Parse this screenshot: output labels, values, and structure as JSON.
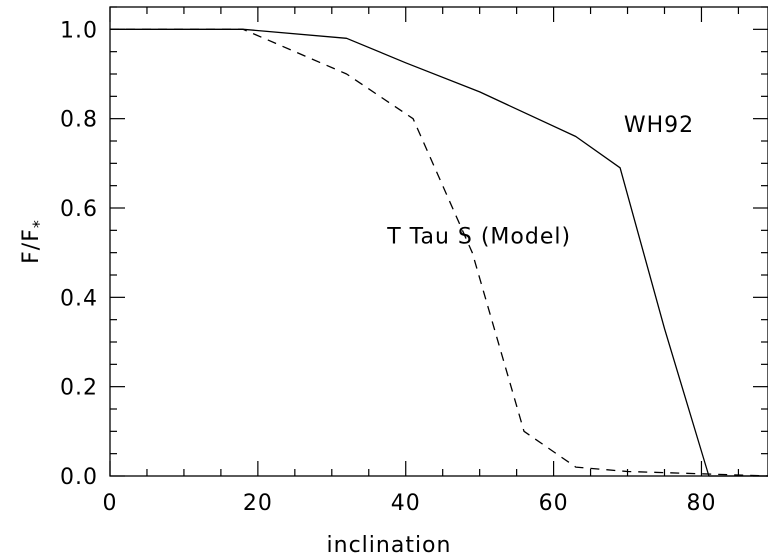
{
  "chart_data": {
    "type": "line",
    "xlabel": "inclination",
    "ylabel": "F/F",
    "ylabel_subscript": "*",
    "xlim": [
      0,
      89
    ],
    "ylim": [
      0,
      1.05
    ],
    "x_ticks": [
      0,
      20,
      40,
      60,
      80
    ],
    "x_tick_labels": [
      "0",
      "20",
      "40",
      "60",
      "80"
    ],
    "y_ticks": [
      0.0,
      0.2,
      0.4,
      0.6,
      0.8,
      1.0
    ],
    "y_tick_labels": [
      "0.0",
      "0.2",
      "0.4",
      "0.6",
      "0.8",
      "1.0"
    ],
    "x_minor_step": 5,
    "y_minor_step": 0.05,
    "grid": false,
    "series": [
      {
        "name": "WH92",
        "style": "solid",
        "color": "#000000",
        "x": [
          0,
          18,
          32,
          40,
          50,
          63,
          69,
          75,
          81,
          89
        ],
        "y": [
          1.0,
          1.0,
          0.98,
          0.925,
          0.86,
          0.76,
          0.69,
          0.33,
          0.0,
          0.0
        ]
      },
      {
        "name": "T Tau S (Model)",
        "style": "dashed",
        "color": "#000000",
        "x": [
          0,
          18,
          32,
          41,
          49,
          56,
          63,
          70,
          80,
          89
        ],
        "y": [
          1.0,
          1.0,
          0.9,
          0.8,
          0.5,
          0.1,
          0.02,
          0.01,
          0.005,
          0.0
        ]
      }
    ],
    "annotations": [
      {
        "text": "WH92",
        "x": 69.5,
        "y": 0.77
      },
      {
        "text": "T Tau S (Model)",
        "x": 37.5,
        "y": 0.52
      }
    ]
  }
}
